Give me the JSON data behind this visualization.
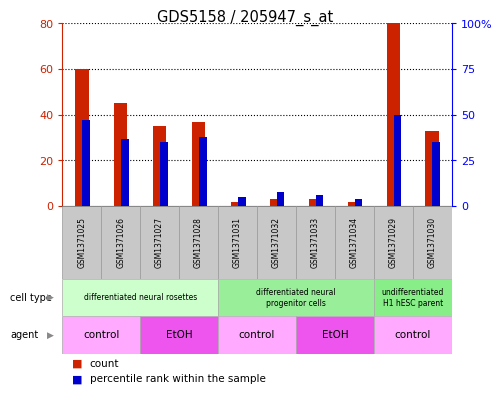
{
  "title": "GDS5158 / 205947_s_at",
  "samples": [
    "GSM1371025",
    "GSM1371026",
    "GSM1371027",
    "GSM1371028",
    "GSM1371031",
    "GSM1371032",
    "GSM1371033",
    "GSM1371034",
    "GSM1371029",
    "GSM1371030"
  ],
  "count_values": [
    60,
    45,
    35,
    37,
    2,
    3,
    3,
    2,
    80,
    33
  ],
  "percentile_values": [
    47,
    37,
    35,
    38,
    5,
    8,
    6,
    4,
    50,
    35
  ],
  "count_color": "#cc2200",
  "percentile_color": "#0000cc",
  "left_ylim": [
    0,
    80
  ],
  "right_ylim": [
    0,
    100
  ],
  "left_yticks": [
    0,
    20,
    40,
    60,
    80
  ],
  "right_yticks": [
    0,
    25,
    50,
    75,
    100
  ],
  "right_yticklabels": [
    "0",
    "25",
    "50",
    "75",
    "100%"
  ],
  "cell_type_groups": [
    {
      "label": "differentiated neural rosettes",
      "start": 0,
      "end": 3,
      "color": "#ccffcc"
    },
    {
      "label": "differentiated neural\nprogenitor cells",
      "start": 4,
      "end": 7,
      "color": "#99ee99"
    },
    {
      "label": "undifferentiated\nH1 hESC parent",
      "start": 8,
      "end": 9,
      "color": "#88ee88"
    }
  ],
  "agent_groups": [
    {
      "label": "control",
      "start": 0,
      "end": 1,
      "color": "#ffaaff"
    },
    {
      "label": "EtOH",
      "start": 2,
      "end": 3,
      "color": "#ee55ee"
    },
    {
      "label": "control",
      "start": 4,
      "end": 5,
      "color": "#ffaaff"
    },
    {
      "label": "EtOH",
      "start": 6,
      "end": 7,
      "color": "#ee55ee"
    },
    {
      "label": "control",
      "start": 8,
      "end": 9,
      "color": "#ffaaff"
    }
  ],
  "bg_color": "#ffffff",
  "bar_width": 0.35,
  "pct_bar_width": 0.2,
  "sample_bg_color": "#c8c8c8"
}
